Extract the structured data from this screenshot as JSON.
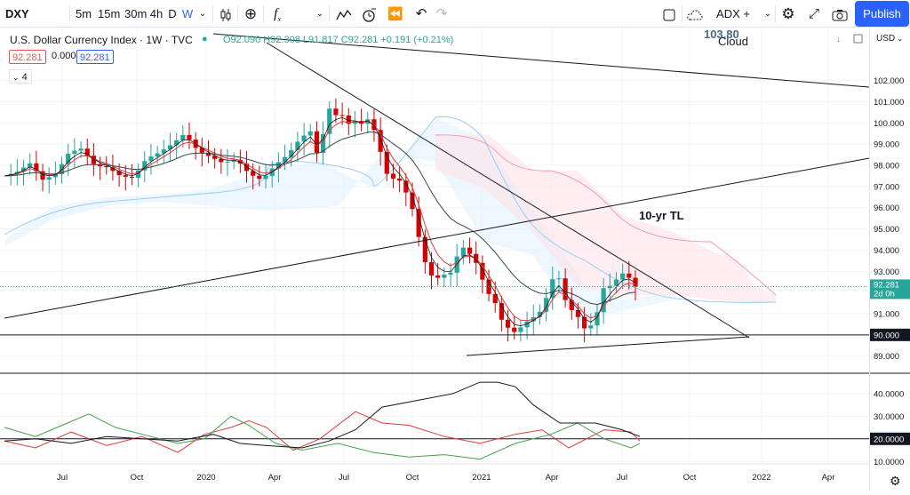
{
  "symbol": "DXY",
  "intervals": [
    "5m",
    "15m",
    "30m",
    "4h",
    "D",
    "W"
  ],
  "selected_interval": "W",
  "indicator_label": "ADX + Cloud",
  "publish_label": "Publish",
  "legend": {
    "title": "U.S. Dollar Currency Index · 1W · TVC",
    "ohlc": "O92.090 H92.308 L91.817 C92.281 +0.191 (+0.21%)",
    "bid": "92.281",
    "spread": "0.000",
    "ask": "92.281",
    "indicators_count": "4"
  },
  "currency": "USD",
  "floating_value": "103.80",
  "annotation_10yr": "10-yr TL",
  "price_axis": {
    "ticks": [
      "102.000",
      "101.000",
      "100.000",
      "99.000",
      "98.000",
      "97.000",
      "96.000",
      "95.000",
      "94.000",
      "93.000",
      "91.000",
      "89.000"
    ],
    "current_price": "92.281",
    "countdown": "2d 0h",
    "support_label": "90.000"
  },
  "adx_axis": {
    "ticks": [
      "40.0000",
      "30.0000",
      "10.0000"
    ],
    "level_label": "20.0000"
  },
  "time_axis": [
    "Jul",
    "Oct",
    "2020",
    "Apr",
    "Jul",
    "Oct",
    "2021",
    "Apr",
    "Jul",
    "Oct",
    "2022",
    "Apr"
  ],
  "chart_data": {
    "type": "candlestick",
    "timeframe": "1W",
    "xlim": [
      "2019-05",
      "2022-07"
    ],
    "ylim": [
      88.4,
      103.2
    ],
    "close_path": [
      [
        0,
        97.5
      ],
      [
        4,
        97.7
      ],
      [
        8,
        98.1
      ],
      [
        12,
        97.3
      ],
      [
        16,
        97.6
      ],
      [
        20,
        98.6
      ],
      [
        24,
        98.8
      ],
      [
        28,
        98.0
      ],
      [
        32,
        97.9
      ],
      [
        36,
        97.5
      ],
      [
        40,
        97.4
      ],
      [
        44,
        98.3
      ],
      [
        48,
        98.6
      ],
      [
        52,
        99.0
      ],
      [
        56,
        99.5
      ],
      [
        60,
        98.7
      ],
      [
        64,
        98.4
      ],
      [
        68,
        98.1
      ],
      [
        72,
        98.3
      ],
      [
        76,
        97.6
      ],
      [
        80,
        97.3
      ],
      [
        84,
        98.0
      ],
      [
        88,
        98.5
      ],
      [
        92,
        99.3
      ],
      [
        96,
        99.7
      ],
      [
        98,
        97.5
      ],
      [
        100,
        101.5
      ],
      [
        102,
        99.8
      ],
      [
        104,
        101.0
      ],
      [
        106,
        99.6
      ],
      [
        108,
        100.4
      ],
      [
        110,
        99.7
      ],
      [
        112,
        100.3
      ],
      [
        114,
        100.0
      ],
      [
        116,
        99.2
      ],
      [
        118,
        97.8
      ],
      [
        120,
        97.3
      ],
      [
        122,
        97.5
      ],
      [
        124,
        96.9
      ],
      [
        126,
        96.4
      ],
      [
        128,
        95.1
      ],
      [
        130,
        93.7
      ],
      [
        132,
        92.9
      ],
      [
        134,
        92.6
      ],
      [
        136,
        92.9
      ],
      [
        138,
        92.7
      ],
      [
        140,
        93.5
      ],
      [
        142,
        94.2
      ],
      [
        144,
        93.9
      ],
      [
        146,
        93.6
      ],
      [
        148,
        92.8
      ],
      [
        150,
        92.0
      ],
      [
        152,
        91.7
      ],
      [
        154,
        90.8
      ],
      [
        156,
        90.4
      ],
      [
        158,
        90.1
      ],
      [
        160,
        90.3
      ],
      [
        162,
        90.6
      ],
      [
        164,
        90.8
      ],
      [
        166,
        91.0
      ],
      [
        168,
        91.6
      ],
      [
        170,
        92.6
      ],
      [
        172,
        92.8
      ],
      [
        174,
        91.7
      ],
      [
        176,
        91.2
      ],
      [
        178,
        90.9
      ],
      [
        180,
        90.3
      ],
      [
        182,
        90.4
      ],
      [
        184,
        91.0
      ],
      [
        186,
        92.2
      ],
      [
        188,
        92.3
      ],
      [
        190,
        92.6
      ],
      [
        192,
        92.9
      ],
      [
        194,
        92.7
      ],
      [
        196,
        92.28
      ]
    ],
    "last_candle": {
      "open": 92.09,
      "high": 92.308,
      "low": 91.817,
      "close": 92.281,
      "change": 0.191,
      "change_pct": 0.21
    },
    "horizontal_support": 90.0,
    "adx_panel": {
      "level_line": 20,
      "ylim": [
        5,
        47
      ]
    }
  }
}
